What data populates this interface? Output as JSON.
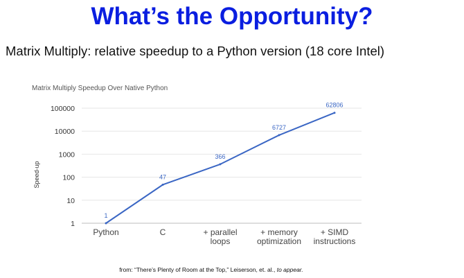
{
  "slide": {
    "title": "What’s the Opportunity?",
    "subtitle": "Matrix Multiply: relative speedup to a Python version (18 core Intel)",
    "source_prefix": "from: “There’s Plenty of Room at the Top,” Leiserson, et. al.,",
    "source_suffix": "to appear."
  },
  "chart_data": {
    "type": "line",
    "title": "Matrix Multiply Speedup Over Native Python",
    "xlabel": "",
    "ylabel": "Speed-up",
    "yscale": "log",
    "ylim": [
      1,
      100000
    ],
    "yticks": [
      "1",
      "10",
      "100",
      "1000",
      "10000",
      "100000"
    ],
    "grid": true,
    "categories": [
      [
        "Python"
      ],
      [
        "C"
      ],
      [
        "+ parallel",
        "loops"
      ],
      [
        "+ memory",
        "optimization"
      ],
      [
        "+ SIMD",
        "instructions"
      ]
    ],
    "series": [
      {
        "values": [
          1,
          47,
          366,
          6727,
          62806
        ],
        "color": "#3a66c4"
      }
    ],
    "data_labels": [
      "1",
      "47",
      "366",
      "6727",
      "62806"
    ]
  }
}
